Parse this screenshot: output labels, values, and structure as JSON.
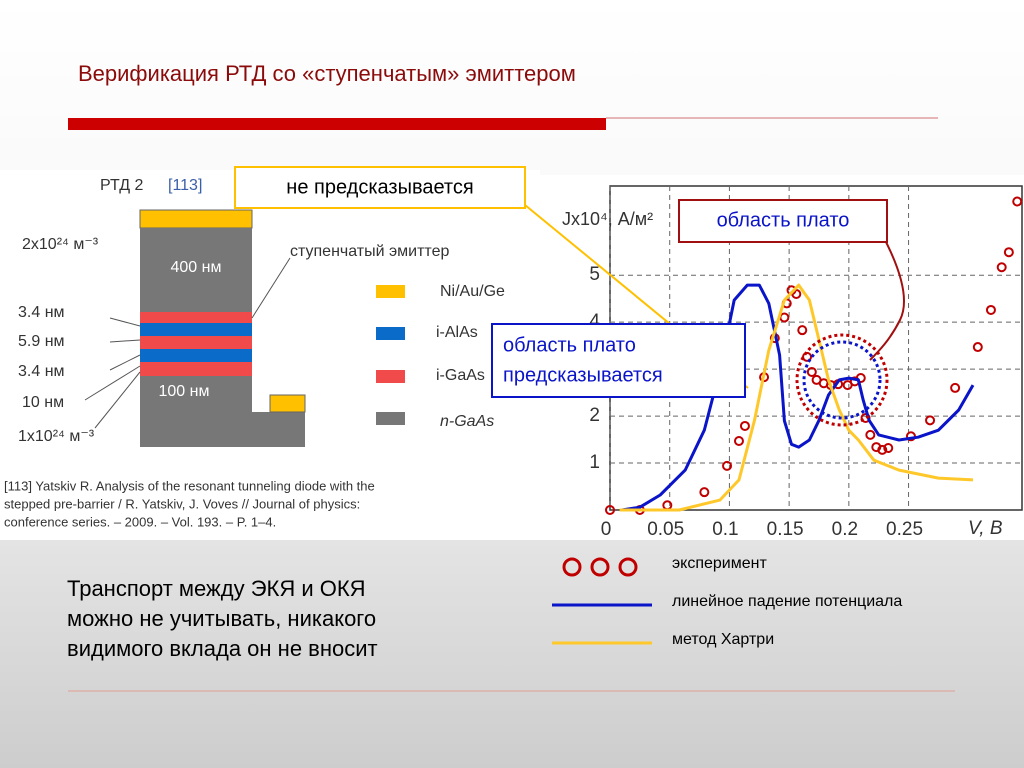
{
  "slide": {
    "title": "Верификация РТД со «ступенчатым» эмиттером",
    "diagram": {
      "heading": "РТД 2",
      "ref": "[113]",
      "doping_top": "2x10²⁴ м⁻³",
      "layer_top": "400 нм",
      "emitter": "ступенчатый эмиттер",
      "t1": "3.4 нм",
      "t2": "5.9 нм",
      "t3": "3.4 нм",
      "t4": "10 нм",
      "doping_bottom": "1x10²⁴ м⁻³",
      "layer_bottom": "100 нм",
      "legend": [
        "Ni/Au/Ge",
        "i-AlAs",
        "i-GaAs",
        "n-GaAs"
      ]
    },
    "reference": [
      "[113]  Yatskiv R. Analysis of the resonant tunneling diode with the",
      "stepped pre-barrier / R. Yatskiv, J. Voves // Journal of physics:",
      "conference series. – 2009. – Vol. 193. – P. 1–4."
    ],
    "callout_not": "не предсказывается",
    "callout_plateau": "область плато",
    "callout_predicted": [
      "область плато",
      "предсказывается"
    ],
    "body": [
      "Транспорт между ЭКЯ и ОКЯ",
      "можно не учитывать, никакого",
      "видимого вклада он не вносит"
    ]
  },
  "chart_data": {
    "type": "line",
    "ylabel": "Jx10⁴, А/м²",
    "xlabel": "V, В",
    "xlim": [
      0,
      0.345
    ],
    "ylim": [
      0,
      6.9
    ],
    "xticks": [
      0,
      0.05,
      0.1,
      0.15,
      0.2,
      0.25
    ],
    "yticks": [
      1,
      2,
      3,
      4,
      5
    ],
    "grid": true,
    "series": [
      {
        "name": "эксперимент",
        "color": "#c00000",
        "marker": "circle",
        "x": [
          0,
          0.025,
          0.048,
          0.079,
          0.098,
          0.108,
          0.113,
          0.129,
          0.138,
          0.146,
          0.148,
          0.152,
          0.156,
          0.161,
          0.165,
          0.169,
          0.173,
          0.179,
          0.185,
          0.191,
          0.199,
          0.205,
          0.21,
          0.214,
          0.218,
          0.223,
          0.228,
          0.233,
          0.252,
          0.268,
          0.289,
          0.308,
          0.319,
          0.328,
          0.334,
          0.341
        ],
        "values": [
          0,
          0,
          0.1,
          0.38,
          0.94,
          1.47,
          1.79,
          2.83,
          3.66,
          4.1,
          4.4,
          4.68,
          4.6,
          3.83,
          3.26,
          2.94,
          2.77,
          2.7,
          2.66,
          2.68,
          2.66,
          2.74,
          2.81,
          1.96,
          1.6,
          1.34,
          1.28,
          1.32,
          1.57,
          1.91,
          2.6,
          3.47,
          4.26,
          5.17,
          5.49,
          6.57
        ]
      },
      {
        "name": "линейное падение потенциала",
        "color": "#0a14c8",
        "x": [
          0.01,
          0.025,
          0.042,
          0.063,
          0.079,
          0.092,
          0.104,
          0.115,
          0.125,
          0.133,
          0.142,
          0.146,
          0.152,
          0.158,
          0.167,
          0.175,
          0.183,
          0.192,
          0.2,
          0.208,
          0.212,
          0.217,
          0.225,
          0.242,
          0.258,
          0.275,
          0.292,
          0.304
        ],
        "values": [
          0,
          0.06,
          0.32,
          0.85,
          1.7,
          2.98,
          4.47,
          4.79,
          4.79,
          4.4,
          3.3,
          1.9,
          1.4,
          1.34,
          1.49,
          1.91,
          2.45,
          2.77,
          2.81,
          2.77,
          2.34,
          1.91,
          1.6,
          1.49,
          1.55,
          1.7,
          2.13,
          2.66
        ]
      },
      {
        "name": "метод Хартри",
        "color": "#ffc82a",
        "x": [
          0.008,
          0.058,
          0.092,
          0.108,
          0.121,
          0.133,
          0.146,
          0.158,
          0.167,
          0.175,
          0.183,
          0.192,
          0.2,
          0.208,
          0.221,
          0.242,
          0.275,
          0.304
        ],
        "values": [
          0,
          0,
          0.21,
          0.64,
          1.91,
          3.4,
          4.47,
          4.79,
          4.47,
          3.62,
          2.77,
          2.13,
          1.7,
          1.49,
          1.06,
          0.85,
          0.68,
          0.64
        ]
      }
    ]
  }
}
